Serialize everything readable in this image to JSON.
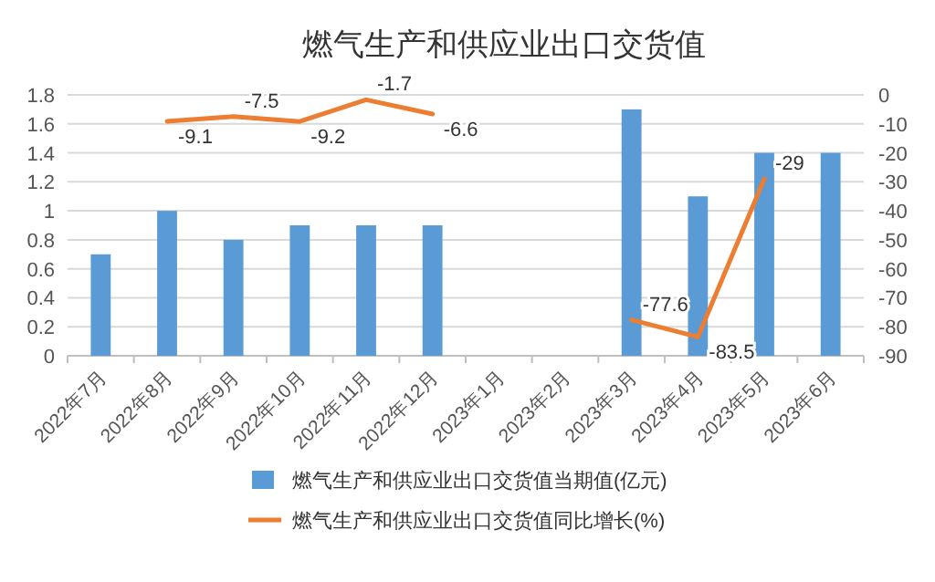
{
  "chart_data": {
    "type": "bar",
    "title": "燃气生产和供应业出口交货值",
    "categories": [
      "2022年7月",
      "2022年8月",
      "2022年9月",
      "2022年10月",
      "2022年11月",
      "2022年12月",
      "2023年1月",
      "2023年2月",
      "2023年3月",
      "2023年4月",
      "2023年5月",
      "2023年6月"
    ],
    "series": [
      {
        "name": "燃气生产和供应业出口交货值当期值(亿元)",
        "color": "#5b9bd5",
        "values": [
          0.7,
          1.0,
          0.8,
          0.9,
          0.9,
          0.9,
          null,
          null,
          1.7,
          1.1,
          1.4,
          1.4
        ]
      },
      {
        "name": "燃气生产和供应业出口交货值同比增长(%)",
        "type": "line",
        "axis": "y2",
        "color": "#ed7d31",
        "values": [
          null,
          -9.1,
          -7.5,
          -9.2,
          -1.7,
          -6.6,
          null,
          null,
          -77.6,
          -83.5,
          -29,
          null
        ],
        "value_labels": [
          null,
          "-9.1",
          "-7.5",
          "-9.2",
          "-1.7",
          "-6.6",
          null,
          null,
          "-77.6",
          "-83.5",
          "-29",
          null
        ]
      }
    ],
    "ylim": [
      0,
      1.8
    ],
    "yticks": [
      0,
      0.2,
      0.4,
      0.6,
      0.8,
      1,
      1.2,
      1.4,
      1.6,
      1.8
    ],
    "y2lim": [
      -90,
      0
    ],
    "y2ticks": [
      -90,
      -80,
      -70,
      -60,
      -50,
      -40,
      -30,
      -20,
      -10,
      0
    ],
    "grid": "y",
    "legend": "bottom"
  }
}
